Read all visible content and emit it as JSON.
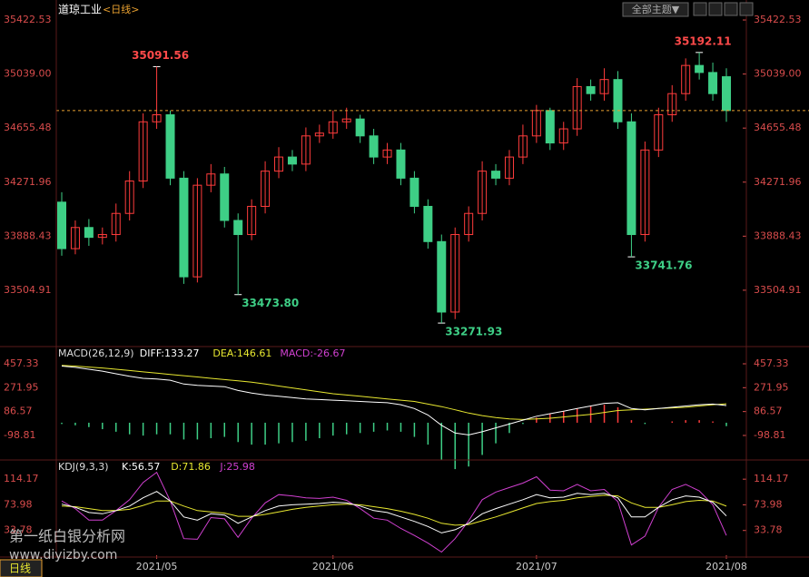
{
  "chart_data": {
    "type": "candlestick",
    "title": "道琼工业",
    "period": "<日线>",
    "up_color": "#ff3c3c",
    "down_color": "#3ecf86",
    "open": [
      34130,
      33800,
      33950,
      33880,
      33900,
      34050,
      34280,
      34700,
      34750,
      34300,
      33600,
      34250,
      34330,
      34000,
      33900,
      34100,
      34350,
      34450,
      34400,
      34600,
      34620,
      34700,
      34720,
      34600,
      34450,
      34500,
      34300,
      34100,
      33850,
      33350,
      33900,
      34050,
      34350,
      34300,
      34450,
      34600,
      34780,
      34550,
      34650,
      34950,
      34900,
      35000,
      34700,
      33900,
      34500,
      34750,
      34900,
      35100,
      35050,
      35020
    ],
    "high": [
      34200,
      34000,
      34010,
      33950,
      34120,
      34350,
      34760,
      35091.56,
      34780,
      34350,
      34300,
      34400,
      34380,
      34050,
      34150,
      34420,
      34520,
      34500,
      34660,
      34680,
      34780,
      34800,
      34750,
      34650,
      34550,
      34550,
      34350,
      34150,
      33900,
      33950,
      34100,
      34420,
      34400,
      34500,
      34680,
      34820,
      34800,
      34700,
      35010,
      35000,
      35080,
      35060,
      34760,
      34560,
      34800,
      34960,
      35150,
      35192.11,
      35120,
      35080
    ],
    "low": [
      33750,
      33760,
      33820,
      33830,
      33850,
      34000,
      34230,
      34650,
      34250,
      33550,
      33560,
      34200,
      33950,
      33473.8,
      33860,
      34050,
      34300,
      34350,
      34350,
      34550,
      34580,
      34650,
      34550,
      34400,
      34400,
      34250,
      34050,
      33800,
      33271.93,
      33300,
      33850,
      34000,
      34250,
      34250,
      34400,
      34550,
      34500,
      34500,
      34600,
      34850,
      34850,
      34650,
      33741.76,
      33850,
      34450,
      34700,
      34850,
      35000,
      34850,
      34700
    ],
    "close": [
      33800,
      33950,
      33880,
      33900,
      34050,
      34280,
      34700,
      34750,
      34300,
      33600,
      34250,
      34330,
      34000,
      33900,
      34100,
      34350,
      34450,
      34400,
      34600,
      34620,
      34700,
      34720,
      34600,
      34450,
      34500,
      34300,
      34100,
      33850,
      33350,
      33900,
      34050,
      34350,
      34300,
      34450,
      34600,
      34780,
      34550,
      34650,
      34950,
      34900,
      35000,
      34700,
      33900,
      34500,
      34750,
      34900,
      35100,
      35050,
      34900,
      34780
    ],
    "ylim": [
      33118,
      35500
    ],
    "yticks": [
      33504.91,
      33888.43,
      34271.96,
      34655.48,
      {
        "value": 35039,
        "label": "35039.00"
      },
      35422.53
    ],
    "xticks": [
      {
        "value": 7,
        "label": "2021/05"
      },
      {
        "value": 20,
        "label": "2021/06"
      },
      {
        "value": 35,
        "label": "2021/07"
      },
      {
        "value": 49,
        "label": "2021/08"
      }
    ],
    "annotations": [
      {
        "value": 35091.56,
        "label": "35091.56"
      },
      {
        "value": 35192.11,
        "label": "35192.11"
      },
      {
        "value": 33473.8,
        "label": "33473.80"
      },
      {
        "value": 33271.93,
        "label": "33271.93"
      },
      {
        "value": 33741.76,
        "label": "33741.76"
      }
    ],
    "indicators": [
      {
        "type": "macd",
        "title": "MACD(26,12,9)",
        "ylim": [
          -275,
          570
        ],
        "yticks": [
          -98.81,
          86.57,
          271.95,
          457.33
        ],
        "series": [
          {
            "name": "DIFF:133.27",
            "color": "#ffffff",
            "values": [
              440,
              430,
              415,
              400,
              380,
              360,
              345,
              340,
              330,
              300,
              290,
              285,
              280,
              250,
              230,
              215,
              205,
              195,
              185,
              180,
              175,
              170,
              165,
              160,
              155,
              140,
              110,
              60,
              -20,
              -80,
              -95,
              -70,
              -40,
              -10,
              20,
              50,
              70,
              90,
              110,
              130,
              150,
              155,
              110,
              100,
              110,
              120,
              130,
              140,
              145,
              133.27
            ]
          },
          {
            "name": "DEA:146.61",
            "color": "#e8e830",
            "values": [
              445,
              440,
              432,
              425,
              415,
              405,
              395,
              385,
              375,
              365,
              355,
              345,
              335,
              325,
              315,
              300,
              285,
              270,
              255,
              240,
              225,
              215,
              205,
              195,
              185,
              175,
              165,
              145,
              125,
              100,
              75,
              55,
              40,
              30,
              25,
              30,
              35,
              45,
              55,
              65,
              80,
              95,
              100,
              105,
              110,
              115,
              120,
              130,
              140,
              146.61
            ]
          },
          {
            "name": "MACD:-26.67",
            "color": "#d040d0",
            "style": "bar",
            "values": [
              -10,
              -20,
              -34,
              -50,
              -70,
              -90,
              -100,
              -90,
              -90,
              -130,
              -130,
              -120,
              -110,
              -150,
              -170,
              -170,
              -160,
              -150,
              -140,
              -120,
              -100,
              -90,
              -80,
              -70,
              -60,
              -70,
              -110,
              -170,
              -290,
              -360,
              -340,
              -250,
              -160,
              -80,
              -10,
              40,
              70,
              90,
              110,
              130,
              140,
              120,
              20,
              -10,
              0,
              10,
              20,
              20,
              10,
              -26.67
            ]
          }
        ]
      },
      {
        "type": "kdj",
        "title": "KDJ(9,3,3)",
        "ylim": [
          -5,
          140
        ],
        "yticks": [
          33.78,
          73.98,
          114.17
        ],
        "series": [
          {
            "name": "K:56.57",
            "color": "#ffffff",
            "values": [
              75,
              70,
              62,
              60,
              65,
              72,
              85,
              95,
              80,
              55,
              50,
              60,
              58,
              45,
              55,
              65,
              72,
              74,
              75,
              76,
              78,
              77,
              72,
              65,
              62,
              55,
              48,
              40,
              30,
              35,
              45,
              60,
              68,
              75,
              82,
              90,
              85,
              86,
              92,
              90,
              92,
              85,
              55,
              55,
              70,
              82,
              88,
              86,
              78,
              56.57
            ]
          },
          {
            "name": "D:71.86",
            "color": "#e8e830",
            "values": [
              72,
              71,
              68,
              65,
              65,
              67,
              73,
              80,
              80,
              72,
              65,
              63,
              61,
              56,
              56,
              59,
              63,
              67,
              70,
              72,
              74,
              75,
              74,
              71,
              68,
              64,
              59,
              53,
              45,
              42,
              43,
              49,
              55,
              62,
              69,
              76,
              79,
              81,
              85,
              87,
              89,
              88,
              77,
              70,
              70,
              74,
              79,
              81,
              80,
              71.86
            ]
          },
          {
            "name": "J:25.98",
            "color": "#d040d0",
            "values": [
              80,
              68,
              50,
              50,
              65,
              82,
              109,
              125,
              80,
              21,
              20,
              54,
              52,
              23,
              53,
              77,
              90,
              88,
              85,
              84,
              86,
              81,
              68,
              53,
              50,
              37,
              26,
              14,
              0,
              21,
              49,
              82,
              94,
              101,
              108,
              118,
              97,
              96,
              106,
              96,
              98,
              79,
              11,
              25,
              70,
              98,
              106,
              96,
              74,
              25.98
            ]
          }
        ]
      }
    ]
  },
  "toolbar": {
    "button": "全部主题▼"
  },
  "footer_tab": "日线",
  "watermark": {
    "line1": "第一纸白银分析网",
    "line2": "www.diyizby.com"
  }
}
